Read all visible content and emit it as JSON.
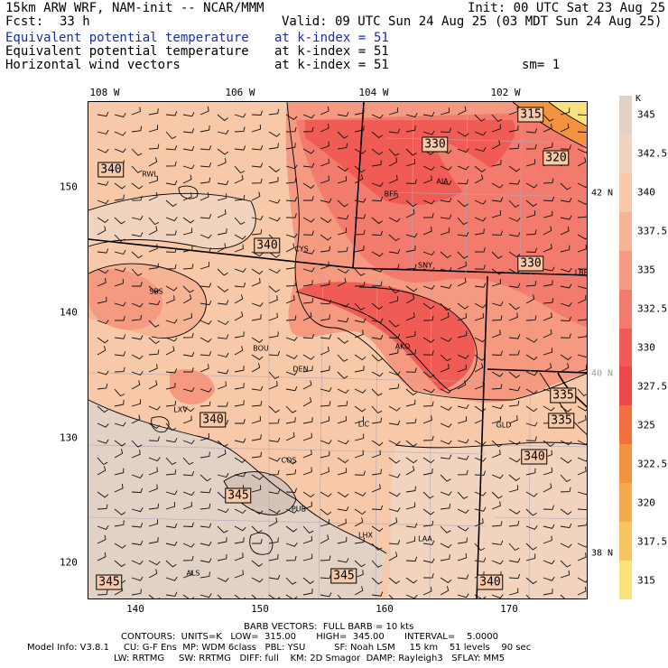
{
  "header": {
    "line1_left": "15km ARW WRF, NAM-init -- NCAR/MMM",
    "line1_right": "Init: 00 UTC Sat 23 Aug 25",
    "fcst_label": "Fcst:",
    "fcst_value": "33 h",
    "valid": "Valid: 09 UTC Sun 24 Aug 25 (03 MDT Sun 24 Aug 25)",
    "fields": [
      {
        "name": "Equivalent potential temperature",
        "level": "at k-index =",
        "value": "51",
        "color": "#1a2bb0"
      },
      {
        "name": "Equivalent potential temperature",
        "level": "at k-index =",
        "value": "51",
        "color": "#000000"
      },
      {
        "name": "Horizontal wind vectors",
        "level": "at k-index =",
        "value": "51",
        "color": "#000000"
      }
    ],
    "smoothing": "sm= 1"
  },
  "map": {
    "lon_labels_top": [
      "108 W",
      "106 W",
      "104 W",
      "102 W"
    ],
    "lat_labels_right": [
      {
        "text": "42 N",
        "grey": false
      },
      {
        "text": "40 N",
        "grey": true
      },
      {
        "text": "38 N",
        "grey": false
      }
    ],
    "grid_x_labels": [
      "140",
      "150",
      "160",
      "170"
    ],
    "grid_y_labels": [
      "150",
      "140",
      "130",
      "120"
    ],
    "contour_labels": [
      "315",
      "330",
      "320",
      "340",
      "340",
      "330",
      "340",
      "335",
      "335",
      "340",
      "345",
      "345",
      "345",
      "340"
    ],
    "cities": [
      "RWL",
      "BFF",
      "AIA",
      "CYS",
      "SNY",
      "LBF",
      "SBS",
      "AKO",
      "BOU",
      "DEN",
      "LXV",
      "LIC",
      "GLD",
      "COS",
      "PUB",
      "LHX",
      "LAA",
      "ALS"
    ]
  },
  "legend": {
    "unit": "K",
    "labels": [
      "345",
      "342.5",
      "340",
      "337.5",
      "335",
      "332.5",
      "330",
      "327.5",
      "325",
      "322.5",
      "320",
      "317.5",
      "315"
    ],
    "colors": [
      "#e2d2c6",
      "#f1d3be",
      "#f7c9a9",
      "#f7b494",
      "#f59981",
      "#f27b6d",
      "#f05c55",
      "#ef4747",
      "#f2703d",
      "#f3923f",
      "#f5ab4a",
      "#f8c55f",
      "#f9e27a"
    ]
  },
  "footer": {
    "barb_line": "BARB VECTORS:  FULL BARB = 10 kts",
    "contours_line": "CONTOURS:  UNITS=K   LOW=  315.00       HIGH=  345.00       INTERVAL=    5.0000",
    "model_line": "Model Info: V3.8.1     CU: G-F Ens  MP: WDM 6class   PBL: YSU          SF: Noah LSM     15 km    51 levels    90 sec",
    "physics_line": "LW: RRTMG     SW: RRTMG   DIFF: full    KM: 2D Smagor  DAMP: Rayleigh3   SFLAY: MM5"
  }
}
